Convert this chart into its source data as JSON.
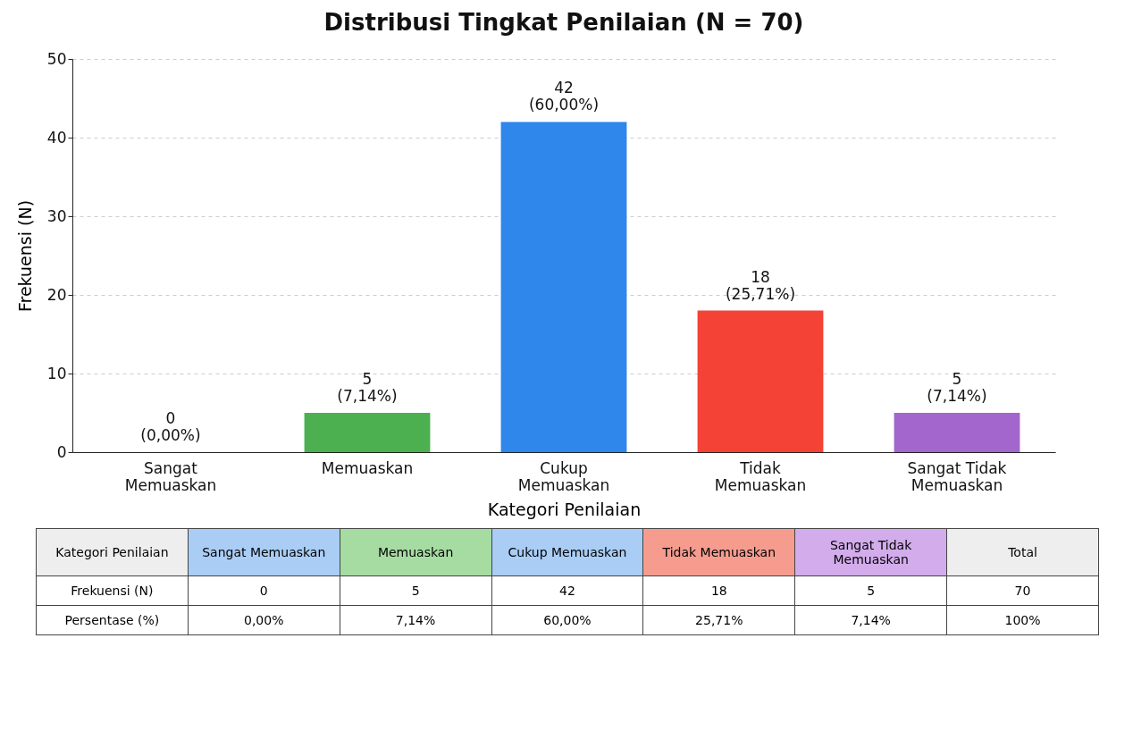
{
  "chart_data": [
    {
      "type": "bar",
      "title": "Distribusi Tingkat Penilaian (N = 70)",
      "xlabel": "Kategori Penilaian",
      "ylabel": "Frekuensi (N)",
      "categories": [
        "Sangat Memuaskan",
        "Memuaskan",
        "Cukup Memuaskan",
        "Tidak Memuaskan",
        "Sangat Tidak Memuaskan"
      ],
      "values": [
        0,
        5,
        42,
        18,
        5
      ],
      "colors": [
        "#2f86eb",
        "#4caf50",
        "#2f86eb",
        "#f44336",
        "#a366cc"
      ],
      "value_labels": [
        "0\n(0,00%)",
        "5\n(7,14%)",
        "42\n(60,00%)",
        "18\n(25,71%)",
        "5\n(7,14%)"
      ],
      "ylim": [
        0,
        50
      ],
      "yticks": [
        0,
        10,
        20,
        30,
        40,
        50
      ],
      "grid": "y"
    },
    {
      "type": "other",
      "xlabel": "Kategori Penilaian",
      "categories": [
        "Sangat Memuaskan",
        "Memuaskan",
        "Cukup Memuaskan",
        "Tidak Memuaskan",
        "Sangat Tidak Memuaskan",
        "Total"
      ],
      "colors": [
        "#a9cdf5",
        "#a6dca2",
        "#a9cdf5",
        "#f59c8f",
        "#d2aceb",
        "#eeeeee"
      ],
      "y_categories": [
        "Frekuensi (N)",
        "Persentase (%)"
      ],
      "cell_labels": [
        [
          "0",
          "5",
          "42",
          "18",
          "5",
          "70"
        ],
        [
          "0,00%",
          "7,14%",
          "60,00%",
          "25,71%",
          "7,14%",
          "100%"
        ]
      ]
    }
  ]
}
